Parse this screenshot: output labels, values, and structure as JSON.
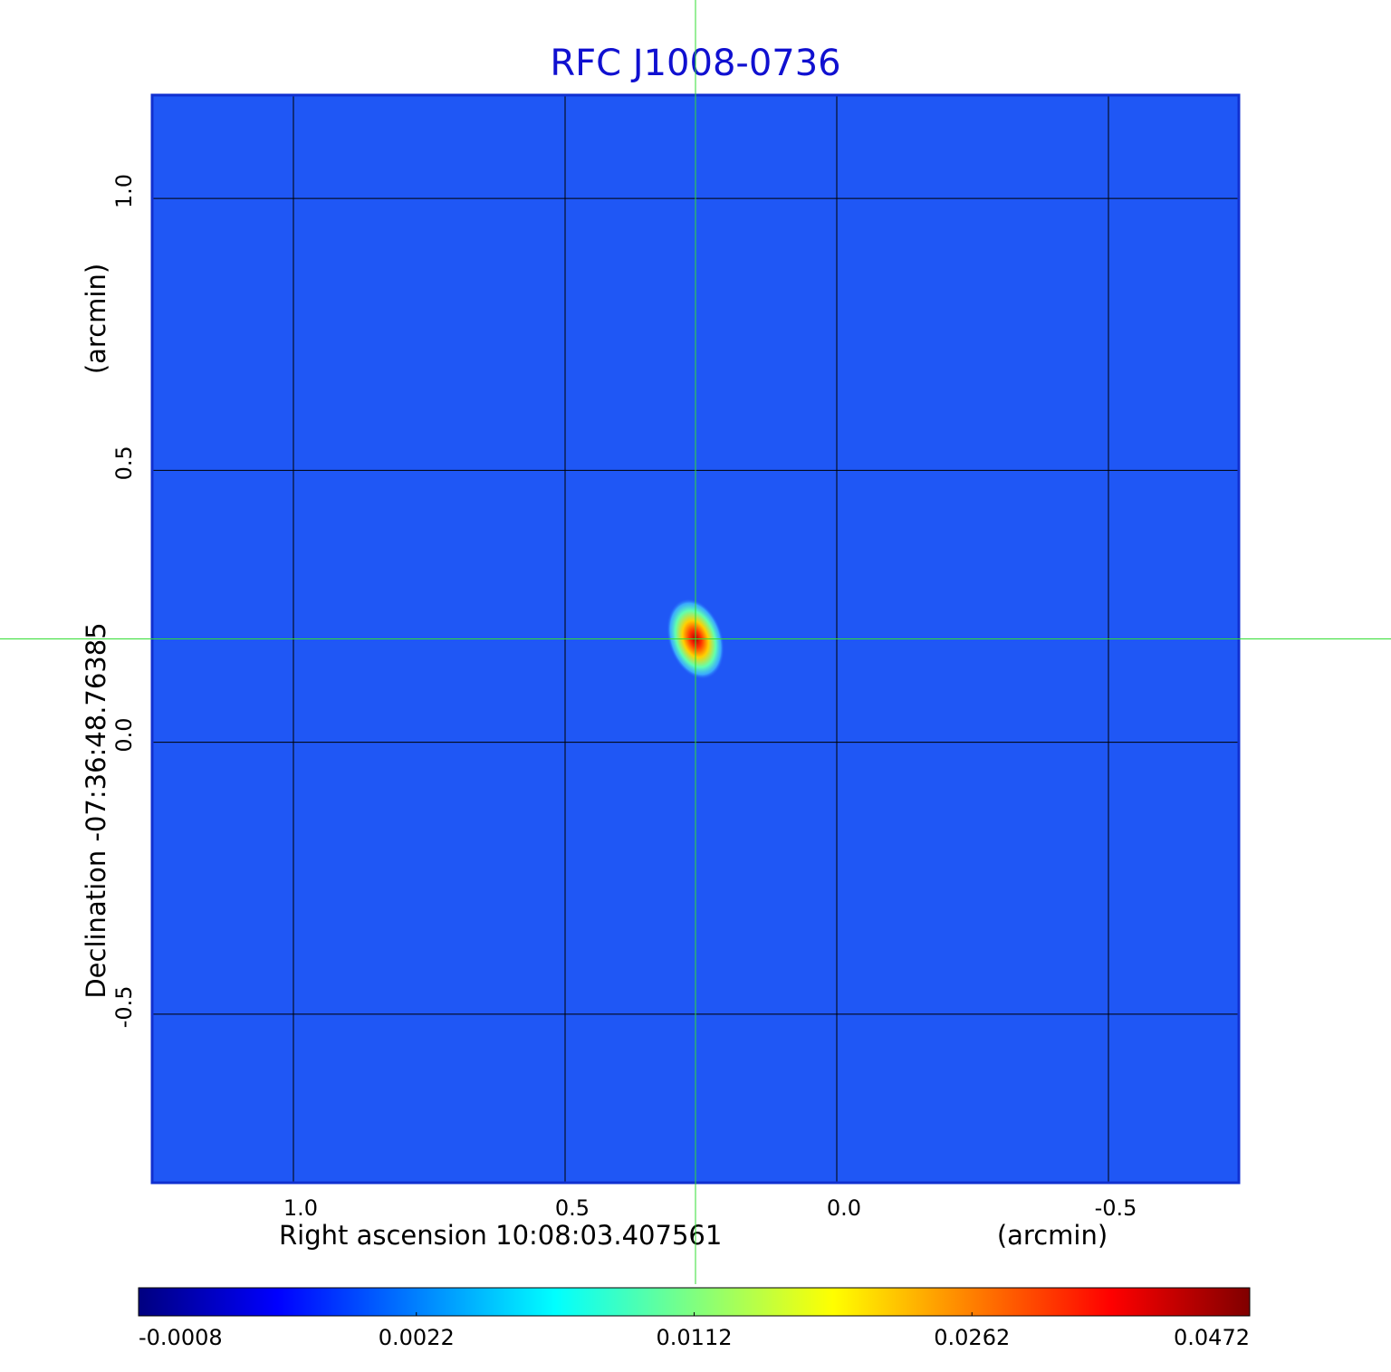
{
  "chart_data": {
    "type": "image",
    "title": "RFC J1008-0736",
    "x_label": "Right ascension  10:08:03.407561",
    "x_unit": "(arcmin)",
    "y_label": "Declination  -07:36:48.76385",
    "y_unit": "(arcmin)",
    "xlim": [
      1.26,
      -0.74
    ],
    "ylim": [
      -0.81,
      1.19
    ],
    "xticks": [
      {
        "value": 1,
        "label": "1.0"
      },
      {
        "value": 0.5,
        "label": "0.5"
      },
      {
        "value": 0,
        "label": "0.0"
      },
      {
        "value": -0.5,
        "label": "-0.5"
      }
    ],
    "yticks": [
      {
        "value": 1,
        "label": "1.0"
      },
      {
        "value": 0.5,
        "label": "0.5"
      },
      {
        "value": 0,
        "label": "0.0"
      },
      {
        "value": -0.5,
        "label": "-0.5"
      }
    ],
    "grid": true,
    "background_color": "#1f57f5",
    "crosshair_color": "#33dd33",
    "source": {
      "x": 0.26,
      "y": 0.19,
      "value": 0.0472
    },
    "colormap": "jet",
    "colorbar_ticks": [
      -0.0008,
      0.0022,
      0.0112,
      0.0262,
      0.0472
    ]
  }
}
